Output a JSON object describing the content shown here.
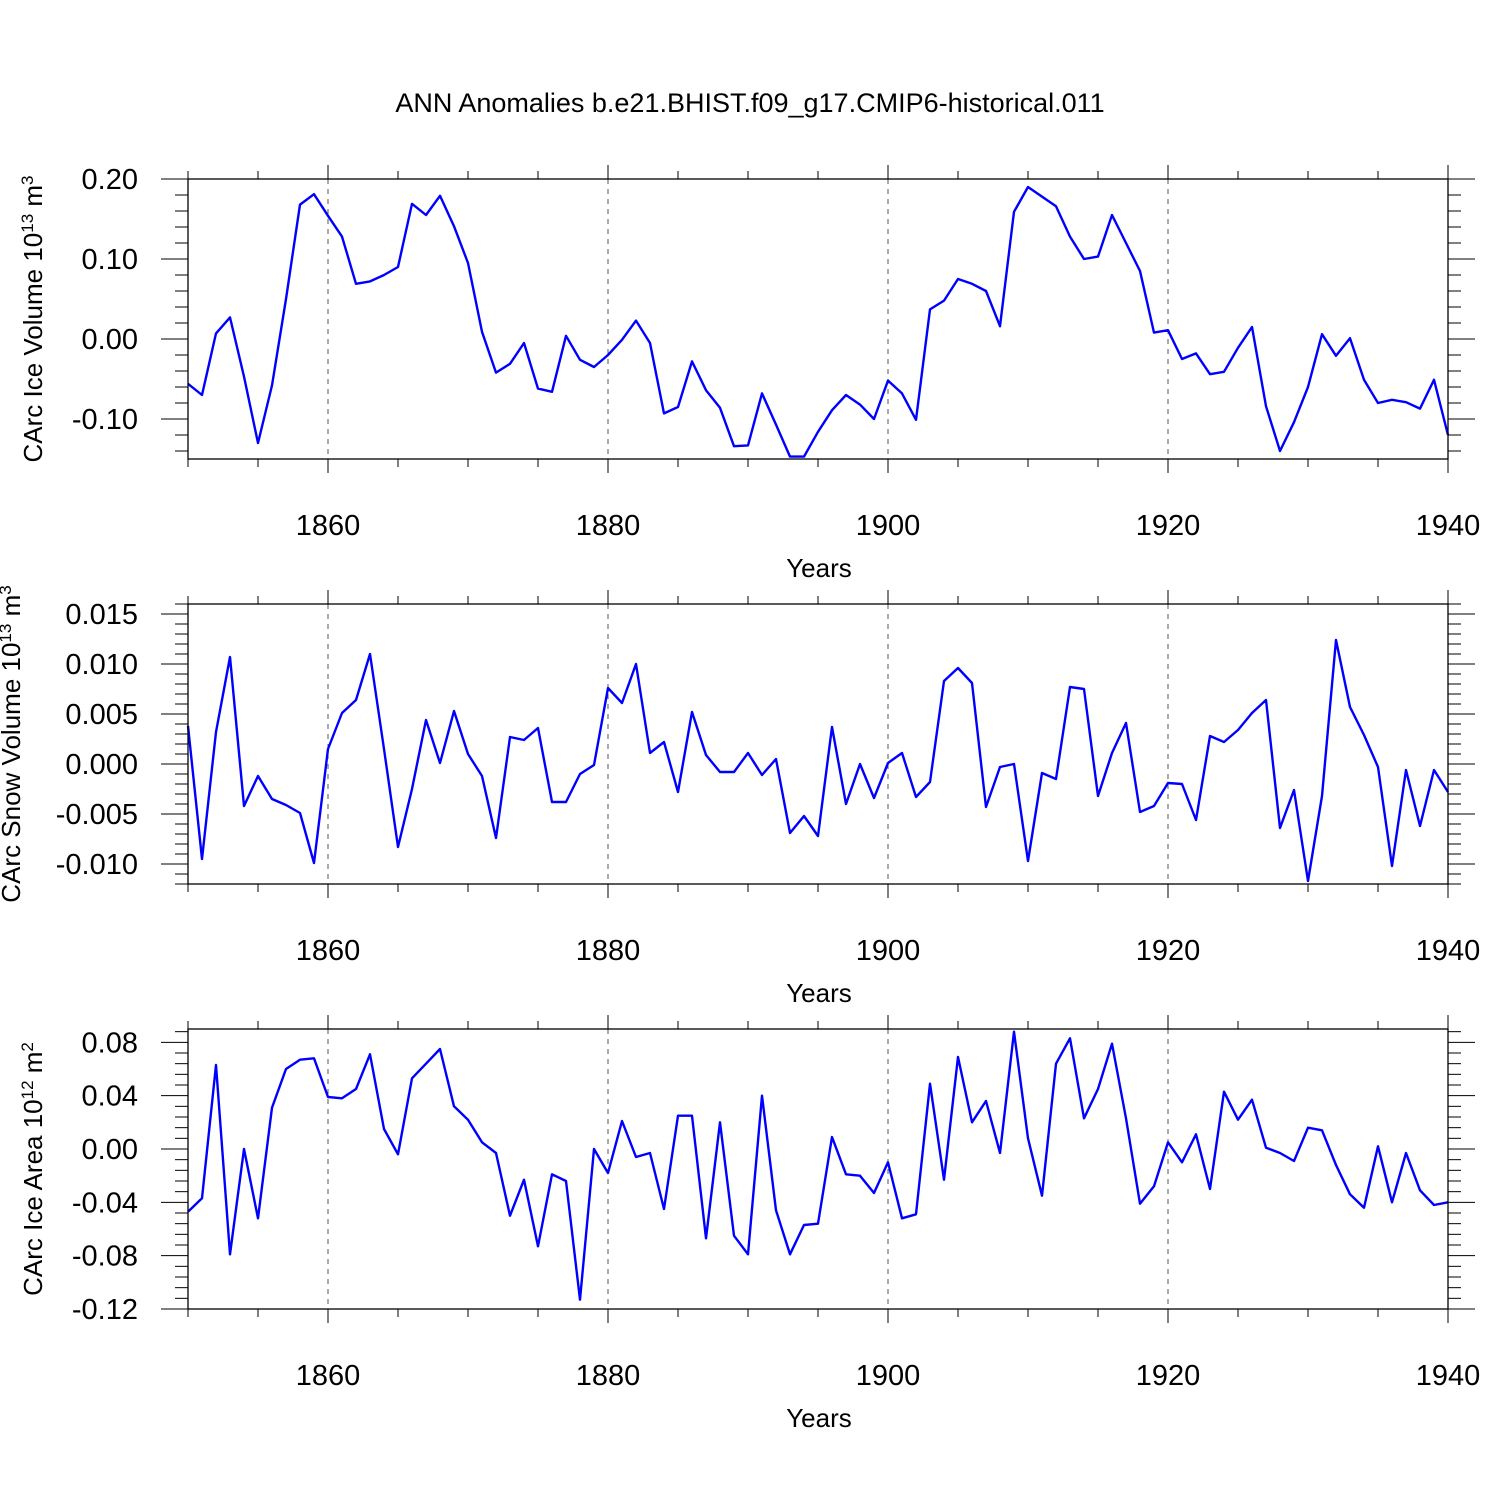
{
  "title": "ANN Anomalies b.e21.BHIST.f09_g17.CMIP6-historical.011",
  "chart_data": [
    {
      "type": "line",
      "ylabel": "CArc Ice Volume 10",
      "ylabel_sup": "13",
      "ylabel_unit": " m",
      "ylabel_unit_sup": "3",
      "xlabel": "Years",
      "xlim": [
        1850,
        1940
      ],
      "ylim": [
        -0.15,
        0.2
      ],
      "yticks": [
        -0.1,
        0.0,
        0.1,
        0.2
      ],
      "ytick_labels": [
        "-0.10",
        "0.00",
        "0.10",
        "0.20"
      ],
      "xticks": [
        1860,
        1880,
        1900,
        1920,
        1940
      ],
      "xtick_labels": [
        "1860",
        "1880",
        "1900",
        "1920",
        "1940"
      ],
      "color": "#0000ff",
      "x_start": 1850,
      "values": [
        -0.056,
        -0.07,
        0.007,
        0.027,
        -0.047,
        -0.13,
        -0.058,
        0.05,
        0.168,
        0.181,
        0.154,
        0.128,
        0.069,
        0.072,
        0.08,
        0.09,
        0.169,
        0.155,
        0.179,
        0.141,
        0.095,
        0.009,
        -0.042,
        -0.031,
        -0.005,
        -0.062,
        -0.066,
        0.004,
        -0.026,
        -0.035,
        -0.02,
        -0.001,
        0.023,
        -0.005,
        -0.093,
        -0.085,
        -0.028,
        -0.064,
        -0.086,
        -0.134,
        -0.133,
        -0.068,
        -0.107,
        -0.147,
        -0.147,
        -0.116,
        -0.089,
        -0.07,
        -0.082,
        -0.1,
        -0.052,
        -0.068,
        -0.101,
        0.037,
        0.048,
        0.075,
        0.069,
        0.06,
        0.016,
        0.159,
        0.19,
        0.178,
        0.166,
        0.128,
        0.1,
        0.103,
        0.155,
        0.12,
        0.085,
        0.008,
        0.011,
        -0.025,
        -0.018,
        -0.044,
        -0.041,
        -0.011,
        0.015,
        -0.084,
        -0.14,
        -0.104,
        -0.06,
        0.006,
        -0.021,
        0.001,
        -0.051,
        -0.08,
        -0.076,
        -0.079,
        -0.087,
        -0.051,
        -0.12
      ]
    },
    {
      "type": "line",
      "ylabel": "CArc Snow Volume 10",
      "ylabel_sup": "13",
      "ylabel_unit": " m",
      "ylabel_unit_sup": "3",
      "xlabel": "Years",
      "xlim": [
        1850,
        1940
      ],
      "ylim": [
        -0.012,
        0.016
      ],
      "yticks": [
        -0.01,
        -0.005,
        0.0,
        0.005,
        0.01,
        0.015
      ],
      "ytick_labels": [
        "-0.010",
        "-0.005",
        "0.000",
        "0.005",
        "0.010",
        "0.015"
      ],
      "xticks": [
        1860,
        1880,
        1900,
        1920,
        1940
      ],
      "xtick_labels": [
        "1860",
        "1880",
        "1900",
        "1920",
        "1940"
      ],
      "color": "#0000ff",
      "x_start": 1850,
      "values": [
        0.0038,
        -0.0095,
        0.0032,
        0.0107,
        -0.0042,
        -0.0012,
        -0.0035,
        -0.0041,
        -0.0049,
        -0.0099,
        0.0015,
        0.0051,
        0.0064,
        0.011,
        0.0015,
        -0.0083,
        -0.0025,
        0.0044,
        0.0001,
        0.0053,
        0.001,
        -0.0012,
        -0.0074,
        0.0027,
        0.0024,
        0.0036,
        -0.0038,
        -0.0038,
        -0.001,
        -0.0001,
        0.0076,
        0.0061,
        0.01,
        0.0011,
        0.0022,
        -0.0028,
        0.0052,
        0.0009,
        -0.0008,
        -0.0008,
        0.0011,
        -0.0011,
        0.0005,
        -0.0069,
        -0.0052,
        -0.0072,
        0.0037,
        -0.004,
        0.0,
        -0.0034,
        0.0001,
        0.0011,
        -0.0033,
        -0.0018,
        0.0083,
        0.0096,
        0.0081,
        -0.0043,
        -0.0003,
        0.0,
        -0.0097,
        -0.0009,
        -0.0015,
        0.0077,
        0.0075,
        -0.0032,
        0.0011,
        0.0041,
        -0.0048,
        -0.0042,
        -0.0019,
        -0.002,
        -0.0056,
        0.0028,
        0.0022,
        0.0034,
        0.0051,
        0.0064,
        -0.0064,
        -0.0026,
        -0.0117,
        -0.0032,
        0.0124,
        0.0057,
        0.0029,
        -0.0003,
        -0.0102,
        -0.0006,
        -0.0062,
        -0.0006,
        -0.0028
      ]
    },
    {
      "type": "line",
      "ylabel": "CArc Ice Area 10",
      "ylabel_sup": "12",
      "ylabel_unit": " m",
      "ylabel_unit_sup": "2",
      "xlabel": "Years",
      "xlim": [
        1850,
        1940
      ],
      "ylim": [
        -0.12,
        0.09
      ],
      "yticks": [
        -0.12,
        -0.08,
        -0.04,
        0.0,
        0.04,
        0.08
      ],
      "ytick_labels": [
        "-0.12",
        "-0.08",
        "-0.04",
        "0.00",
        "0.04",
        "0.08"
      ],
      "xticks": [
        1860,
        1880,
        1900,
        1920,
        1940
      ],
      "xtick_labels": [
        "1860",
        "1880",
        "1900",
        "1920",
        "1940"
      ],
      "color": "#0000ff",
      "x_start": 1850,
      "values": [
        -0.047,
        -0.037,
        0.063,
        -0.079,
        0.0,
        -0.052,
        0.031,
        0.06,
        0.067,
        0.068,
        0.039,
        0.038,
        0.045,
        0.071,
        0.015,
        -0.004,
        0.053,
        0.064,
        0.075,
        0.032,
        0.022,
        0.005,
        -0.003,
        -0.05,
        -0.023,
        -0.073,
        -0.019,
        -0.024,
        -0.113,
        0.0,
        -0.018,
        0.021,
        -0.006,
        -0.003,
        -0.045,
        0.025,
        0.025,
        -0.067,
        0.02,
        -0.065,
        -0.079,
        0.04,
        -0.046,
        -0.079,
        -0.057,
        -0.056,
        0.009,
        -0.019,
        -0.02,
        -0.033,
        -0.01,
        -0.052,
        -0.049,
        0.049,
        -0.023,
        0.069,
        0.02,
        0.036,
        -0.003,
        0.088,
        0.008,
        -0.035,
        0.064,
        0.083,
        0.023,
        0.045,
        0.079,
        0.023,
        -0.041,
        -0.028,
        0.005,
        -0.01,
        0.011,
        -0.03,
        0.043,
        0.022,
        0.037,
        0.001,
        -0.003,
        -0.009,
        0.016,
        0.014,
        -0.012,
        -0.034,
        -0.044,
        0.002,
        -0.04,
        -0.003,
        -0.031,
        -0.042,
        -0.04
      ]
    }
  ]
}
